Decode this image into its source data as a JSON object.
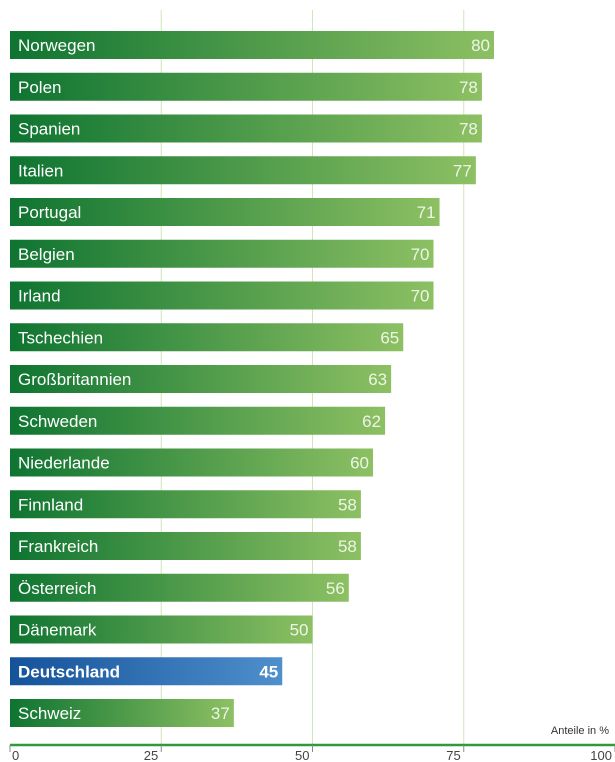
{
  "chart_data": {
    "type": "bar",
    "orientation": "horizontal",
    "categories": [
      "Norwegen",
      "Polen",
      "Spanien",
      "Italien",
      "Portugal",
      "Belgien",
      "Irland",
      "Tschechien",
      "Großbritannien",
      "Schweden",
      "Niederlande",
      "Finnland",
      "Frankreich",
      "Österreich",
      "Dänemark",
      "Deutschland",
      "Schweiz"
    ],
    "values": [
      80,
      78,
      78,
      77,
      71,
      70,
      70,
      65,
      63,
      62,
      60,
      58,
      58,
      56,
      50,
      45,
      37
    ],
    "highlight": "Deutschland",
    "xlim": [
      0,
      100
    ],
    "xticks": [
      "0",
      "25",
      "50",
      "75",
      "100"
    ],
    "unit_label": "Anteile in %",
    "grid": true,
    "colors": {
      "bar_dark": "#0e7431",
      "bar_light": "#8dc063",
      "highlight_dark": "#14529a",
      "highlight_light": "#4f8fcc",
      "grid": "#cfe6b9",
      "axis": "#2f9a3a"
    }
  }
}
